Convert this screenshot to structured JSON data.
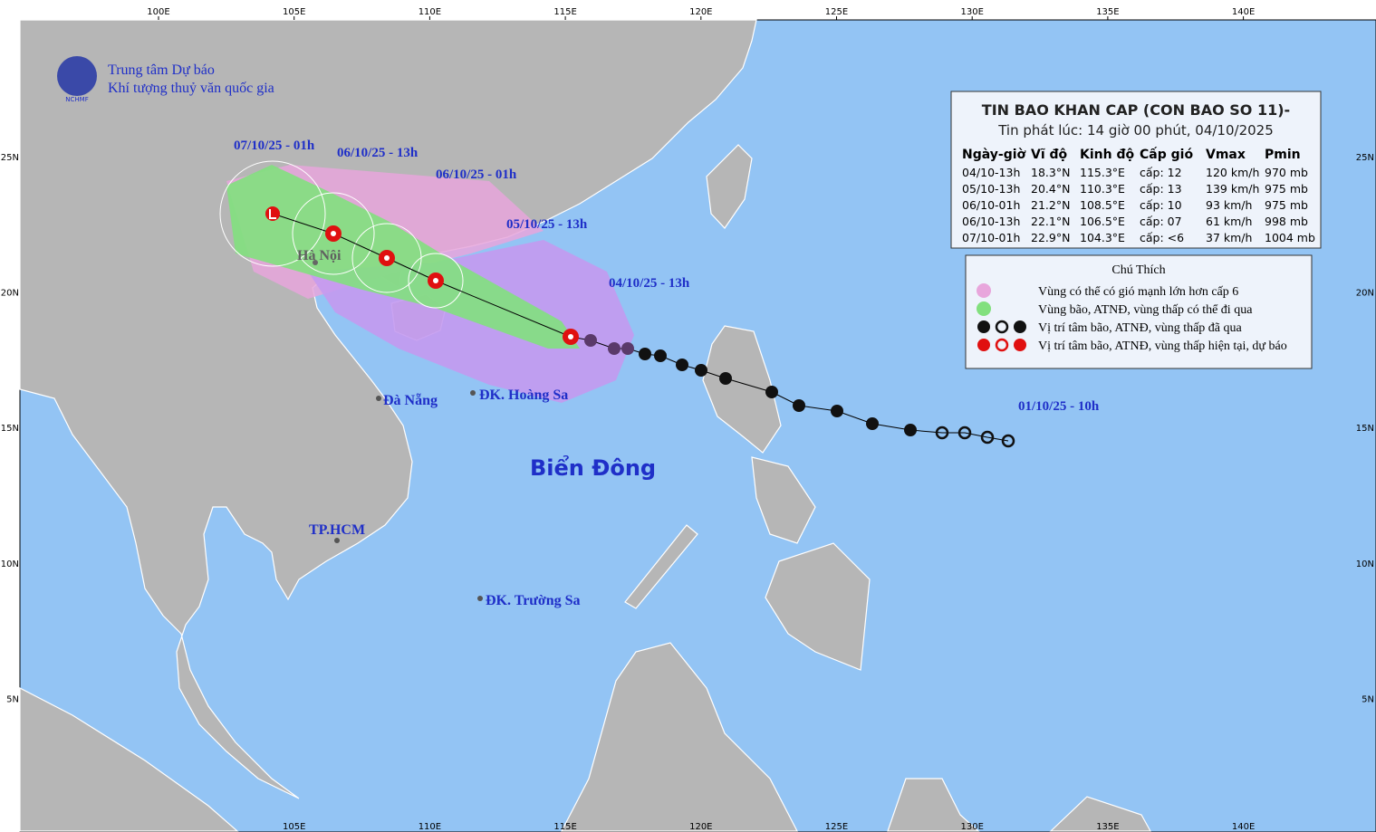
{
  "header": {
    "org_line_1": "Trung tâm Dự báo",
    "org_line_2": "Khí tượng thuỷ văn quốc gia",
    "logo": "NCHMF"
  },
  "grid": {
    "lon_labels": [
      "100E",
      "105E",
      "110E",
      "115E",
      "120E",
      "125E",
      "130E",
      "135E",
      "140E"
    ],
    "lat_labels": [
      "25N",
      "20N",
      "15N",
      "10N",
      "5N"
    ]
  },
  "places": {
    "ha_noi": "Hà Nội",
    "da_nang": "Đà Nẵng",
    "hoang_sa": "ĐK. Hoàng Sa",
    "hcm": "TP.HCM",
    "truong_sa": "ĐK. Trường Sa",
    "sea": "Biển Đông"
  },
  "track_labels": [
    "07/10/25 - 01h",
    "06/10/25 - 13h",
    "06/10/25 - 01h",
    "05/10/25 - 13h",
    "04/10/25 - 13h",
    "01/10/25 - 10h"
  ],
  "bulletin": {
    "title": "TIN BAO KHAN CAP (CON BAO SO 11)-",
    "issued": "Tin phát lúc: 14 giờ 00 phút, 04/10/2025",
    "columns": [
      "Ngày-giờ",
      "Vĩ độ",
      "Kinh độ",
      "Cấp gió",
      "Vmax",
      "Pmin"
    ],
    "rows": [
      [
        "04/10-13h",
        "18.3°N",
        "115.3°E",
        "cấp: 12",
        "120 km/h",
        "970 mb"
      ],
      [
        "05/10-13h",
        "20.4°N",
        "110.3°E",
        "cấp: 13",
        "139 km/h",
        "975 mb"
      ],
      [
        "06/10-01h",
        "21.2°N",
        "108.5°E",
        "cấp: 10",
        "93 km/h",
        "975 mb"
      ],
      [
        "06/10-13h",
        "22.1°N",
        "106.5°E",
        "cấp: 07",
        "61 km/h",
        "998 mb"
      ],
      [
        "07/10-01h",
        "22.9°N",
        "104.3°E",
        "cấp: <6",
        "37 km/h",
        "1004 mb"
      ]
    ]
  },
  "legend": {
    "title": "Chú Thích",
    "items": [
      "Vùng có thể có gió mạnh lớn hơn cấp 6",
      "Vùng bão, ATNĐ, vùng thấp có thể đi qua",
      "Vị trí tâm bão, ATNĐ, vùng thấp đã qua",
      "Vị trí tâm bão, ATNĐ, vùng thấp hiện tại, dự báo"
    ]
  }
}
